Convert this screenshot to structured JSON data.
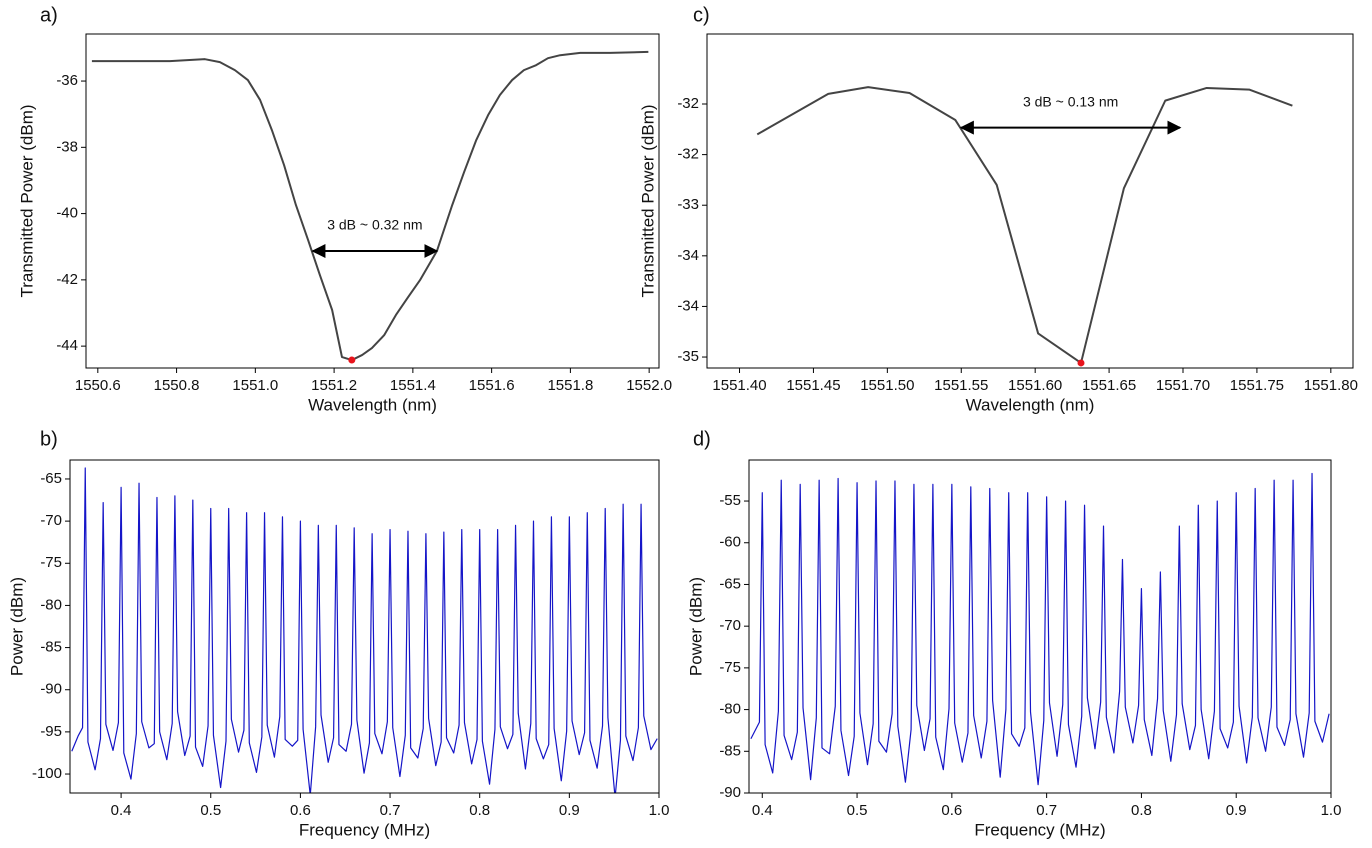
{
  "chart_data": [
    {
      "type": "line",
      "title": "a)",
      "xlabel": "Wavelength (nm)",
      "ylabel": "Transmitted Power (dBm)",
      "color": "#444444",
      "x": [
        1550.585,
        1550.681,
        1550.783,
        1550.872,
        1550.91,
        1550.948,
        1550.981,
        1551.012,
        1551.042,
        1551.073,
        1551.103,
        1551.134,
        1551.164,
        1551.195,
        1551.22,
        1551.245,
        1551.271,
        1551.296,
        1551.327,
        1551.357,
        1551.388,
        1551.418,
        1551.461,
        1551.5,
        1551.53,
        1551.561,
        1551.591,
        1551.621,
        1551.652,
        1551.682,
        1551.713,
        1551.743,
        1551.774,
        1551.825,
        1551.901,
        1551.998
      ],
      "values": [
        -35.4,
        -35.4,
        -35.4,
        -35.34,
        -35.43,
        -35.67,
        -35.97,
        -36.57,
        -37.48,
        -38.54,
        -39.74,
        -40.8,
        -41.86,
        -42.91,
        -44.33,
        -44.42,
        -44.27,
        -44.06,
        -43.67,
        -43.06,
        -42.52,
        -42.01,
        -41.13,
        -39.74,
        -38.75,
        -37.78,
        -37.03,
        -36.42,
        -35.97,
        -35.67,
        -35.52,
        -35.31,
        -35.22,
        -35.15,
        -35.15,
        -35.12
      ],
      "xlim": [
        1550.57,
        1552.025
      ],
      "ylim": [
        -44.66,
        -34.58
      ],
      "xticks": [
        1550.6,
        1550.8,
        {
          "value": 1551,
          "label": "1551.0"
        },
        1551.2,
        1551.4,
        1551.6,
        1551.8,
        {
          "value": 1552,
          "label": "1552.0"
        }
      ],
      "yticks": [
        -36,
        -38,
        -40,
        -42,
        -44
      ],
      "highlight": {
        "x": 1551.245,
        "y": -44.42,
        "color": "#e8141c"
      },
      "annotations": [
        {
          "text": "3 dB ~ 0.32 nm",
          "x": [
            1551.146,
            1551.461
          ],
          "y": -41.13
        }
      ]
    },
    {
      "type": "line",
      "title": "b)",
      "xlabel": "Frequency (MHz)",
      "ylabel": "Power (dBm)",
      "color": "#1515c8",
      "x": [
        0.345,
        0.352,
        0.357,
        0.36,
        0.363,
        0.371,
        0.377,
        0.38,
        0.383,
        0.391,
        0.397,
        0.4,
        0.403,
        0.411,
        0.417,
        0.42,
        0.423,
        0.431,
        0.437,
        0.44,
        0.443,
        0.451,
        0.457,
        0.46,
        0.463,
        0.471,
        0.477,
        0.48,
        0.483,
        0.491,
        0.497,
        0.5,
        0.503,
        0.511,
        0.517,
        0.52,
        0.523,
        0.531,
        0.537,
        0.54,
        0.543,
        0.551,
        0.557,
        0.56,
        0.563,
        0.571,
        0.577,
        0.58,
        0.583,
        0.591,
        0.597,
        0.6,
        0.603,
        0.611,
        0.617,
        0.62,
        0.623,
        0.631,
        0.637,
        0.64,
        0.643,
        0.651,
        0.657,
        0.66,
        0.663,
        0.671,
        0.677,
        0.68,
        0.683,
        0.691,
        0.697,
        0.7,
        0.703,
        0.711,
        0.717,
        0.72,
        0.723,
        0.731,
        0.737,
        0.74,
        0.743,
        0.751,
        0.757,
        0.76,
        0.763,
        0.771,
        0.777,
        0.78,
        0.783,
        0.791,
        0.797,
        0.8,
        0.803,
        0.811,
        0.817,
        0.82,
        0.823,
        0.831,
        0.837,
        0.84,
        0.843,
        0.851,
        0.857,
        0.86,
        0.863,
        0.871,
        0.877,
        0.88,
        0.883,
        0.891,
        0.897,
        0.9,
        0.903,
        0.911,
        0.917,
        0.92,
        0.923,
        0.931,
        0.937,
        0.94,
        0.943,
        0.951,
        0.957,
        0.96,
        0.963,
        0.971,
        0.977,
        0.98,
        0.983,
        0.991,
        0.998
      ],
      "values": [
        -97.3,
        -95.5,
        -94.5,
        -63.7,
        -96.2,
        -99.5,
        -95.8,
        -67.8,
        -94.1,
        -97.2,
        -93.9,
        -66.0,
        -97.5,
        -100.6,
        -95.2,
        -65.5,
        -93.8,
        -96.9,
        -96.4,
        -67.2,
        -95.0,
        -98.3,
        -94.0,
        -67.0,
        -92.6,
        -97.8,
        -95.5,
        -67.5,
        -96.8,
        -99.1,
        -94.3,
        -68.5,
        -95.4,
        -101.6,
        -96.1,
        -68.5,
        -93.5,
        -97.4,
        -94.8,
        -69.0,
        -96.3,
        -99.8,
        -95.6,
        -69.0,
        -94.2,
        -98.0,
        -93.2,
        -69.5,
        -95.9,
        -96.7,
        -96.0,
        -70.0,
        -94.7,
        -102.5,
        -94.4,
        -70.5,
        -93.0,
        -98.6,
        -95.7,
        -70.5,
        -96.5,
        -97.3,
        -94.1,
        -70.8,
        -93.6,
        -99.9,
        -96.3,
        -71.5,
        -95.2,
        -97.6,
        -93.8,
        -71.0,
        -94.5,
        -100.3,
        -95.4,
        -71.2,
        -96.9,
        -98.1,
        -94.6,
        -71.5,
        -93.4,
        -99.0,
        -96.2,
        -71.3,
        -95.7,
        -97.5,
        -94.2,
        -71.0,
        -93.9,
        -98.8,
        -95.9,
        -71.0,
        -96.1,
        -101.2,
        -94.7,
        -71.0,
        -94.4,
        -97.0,
        -95.3,
        -70.5,
        -92.8,
        -99.4,
        -94.0,
        -70.0,
        -95.8,
        -98.2,
        -96.5,
        -69.5,
        -94.6,
        -100.8,
        -94.9,
        -69.5,
        -93.7,
        -97.7,
        -95.1,
        -69.0,
        -96.0,
        -99.3,
        -94.3,
        -68.5,
        -93.3,
        -102.8,
        -96.0,
        -68.0,
        -95.5,
        -98.4,
        -94.5,
        -68.0,
        -93.1,
        -97.1,
        -95.8
      ],
      "xlim": [
        0.343,
        1.0
      ],
      "ylim": [
        -102.25,
        -62.75
      ],
      "xticks": [
        0.4,
        0.5,
        0.6,
        0.7,
        0.8,
        0.9,
        {
          "value": 1,
          "label": "1.0"
        }
      ],
      "yticks": [
        -65,
        -70,
        -75,
        -80,
        -85,
        -90,
        -95,
        -100
      ]
    },
    {
      "type": "line",
      "title": "c)",
      "xlabel": "Wavelength (nm)",
      "ylabel": "Transmitted Power (dBm)",
      "color": "#444444",
      "x": [
        1551.412,
        1551.46,
        1551.487,
        1551.515,
        1551.546,
        1551.574,
        1551.602,
        1551.631,
        1551.66,
        1551.688,
        1551.716,
        1551.745,
        1551.774
      ],
      "values": [
        -32.16,
        -31.68,
        -31.6,
        -31.67,
        -31.99,
        -32.76,
        -34.52,
        -34.87,
        -32.8,
        -31.76,
        -31.61,
        -31.63,
        -31.82
      ],
      "xlim": [
        1551.378,
        1551.815
      ],
      "ylim": [
        -34.93,
        -30.97
      ],
      "xticks": [
        {
          "value": 1551.4,
          "label": "1551.40"
        },
        1551.45,
        {
          "value": 1551.5,
          "label": "1551.50"
        },
        1551.55,
        {
          "value": 1551.6,
          "label": "1551.60"
        },
        1551.65,
        {
          "value": 1551.7,
          "label": "1551.70"
        },
        1551.75,
        {
          "value": 1551.8,
          "label": "1551.80"
        }
      ],
      "yticks": [
        {
          "value": -31.8,
          "label": "-32"
        },
        {
          "value": -32.4,
          "label": "-32"
        },
        {
          "value": -33.0,
          "label": "-33"
        },
        {
          "value": -33.6,
          "label": "-34"
        },
        {
          "value": -34.2,
          "label": "-34"
        },
        {
          "value": -34.8,
          "label": "-35"
        }
      ],
      "highlight": {
        "x": 1551.631,
        "y": -34.87,
        "color": "#e8141c"
      },
      "annotations": [
        {
          "text": "3 dB ~ 0.13 nm",
          "x": [
            1551.55,
            1551.698
          ],
          "y": -32.08
        }
      ]
    },
    {
      "type": "line",
      "title": "d)",
      "xlabel": "Frequency (MHz)",
      "ylabel": "Power (dBm)",
      "color": "#1515c8",
      "x": [
        0.388,
        0.397,
        0.4,
        0.403,
        0.411,
        0.417,
        0.42,
        0.423,
        0.431,
        0.437,
        0.44,
        0.443,
        0.451,
        0.457,
        0.46,
        0.463,
        0.471,
        0.477,
        0.48,
        0.483,
        0.491,
        0.497,
        0.5,
        0.503,
        0.511,
        0.517,
        0.52,
        0.523,
        0.531,
        0.537,
        0.54,
        0.543,
        0.551,
        0.557,
        0.56,
        0.563,
        0.571,
        0.577,
        0.58,
        0.583,
        0.591,
        0.597,
        0.6,
        0.603,
        0.611,
        0.617,
        0.62,
        0.623,
        0.631,
        0.637,
        0.64,
        0.643,
        0.651,
        0.657,
        0.66,
        0.663,
        0.671,
        0.677,
        0.68,
        0.683,
        0.691,
        0.697,
        0.7,
        0.703,
        0.711,
        0.717,
        0.72,
        0.723,
        0.731,
        0.737,
        0.74,
        0.743,
        0.751,
        0.757,
        0.76,
        0.763,
        0.771,
        0.777,
        0.78,
        0.783,
        0.791,
        0.797,
        0.8,
        0.803,
        0.811,
        0.817,
        0.82,
        0.823,
        0.831,
        0.837,
        0.84,
        0.843,
        0.851,
        0.857,
        0.86,
        0.863,
        0.871,
        0.877,
        0.88,
        0.883,
        0.891,
        0.897,
        0.9,
        0.903,
        0.911,
        0.917,
        0.92,
        0.923,
        0.931,
        0.937,
        0.94,
        0.943,
        0.951,
        0.957,
        0.96,
        0.963,
        0.971,
        0.977,
        0.98,
        0.983,
        0.991,
        0.998
      ],
      "values": [
        -83.5,
        -81.5,
        -54.0,
        -84.2,
        -87.6,
        -80.2,
        -52.5,
        -83.1,
        -86.0,
        -82.7,
        -53.0,
        -79.8,
        -88.4,
        -81.0,
        -52.5,
        -84.6,
        -85.3,
        -79.6,
        -52.3,
        -82.5,
        -87.9,
        -83.2,
        -52.8,
        -80.4,
        -86.6,
        -81.7,
        -52.6,
        -83.8,
        -85.1,
        -80.5,
        -52.6,
        -82.0,
        -88.7,
        -82.4,
        -53.0,
        -79.5,
        -84.9,
        -81.1,
        -53.0,
        -83.3,
        -87.2,
        -79.9,
        -53.0,
        -81.6,
        -86.3,
        -82.8,
        -53.3,
        -80.7,
        -85.8,
        -81.4,
        -53.5,
        -78.9,
        -88.1,
        -80.0,
        -54.0,
        -82.9,
        -84.4,
        -82.2,
        -54.0,
        -80.3,
        -89.0,
        -81.3,
        -54.5,
        -79.2,
        -85.6,
        -79.4,
        -55.0,
        -81.8,
        -86.9,
        -80.8,
        -55.5,
        -78.6,
        -84.7,
        -79.1,
        -58.0,
        -80.9,
        -85.2,
        -77.8,
        -62.0,
        -79.7,
        -84.0,
        -79.5,
        -65.5,
        -81.2,
        -85.5,
        -78.7,
        -63.5,
        -80.1,
        -86.2,
        -80.6,
        -58.0,
        -79.3,
        -84.8,
        -81.9,
        -55.5,
        -80.0,
        -85.9,
        -80.2,
        -55.0,
        -82.3,
        -84.6,
        -81.5,
        -54.0,
        -79.6,
        -86.4,
        -80.9,
        -53.5,
        -81.0,
        -85.0,
        -79.7,
        -52.5,
        -82.1,
        -84.3,
        -81.2,
        -52.5,
        -80.5,
        -85.7,
        -80.4,
        -51.7,
        -81.4,
        -83.9,
        -80.5
      ],
      "xlim": [
        0.386,
        1.0
      ],
      "ylim": [
        -90,
        -50.08
      ],
      "xticks": [
        0.4,
        0.5,
        0.6,
        0.7,
        0.8,
        0.9,
        {
          "value": 1,
          "label": "1.0"
        }
      ],
      "yticks": [
        -55,
        -60,
        -65,
        -70,
        -75,
        -80,
        -85,
        -90
      ]
    }
  ]
}
